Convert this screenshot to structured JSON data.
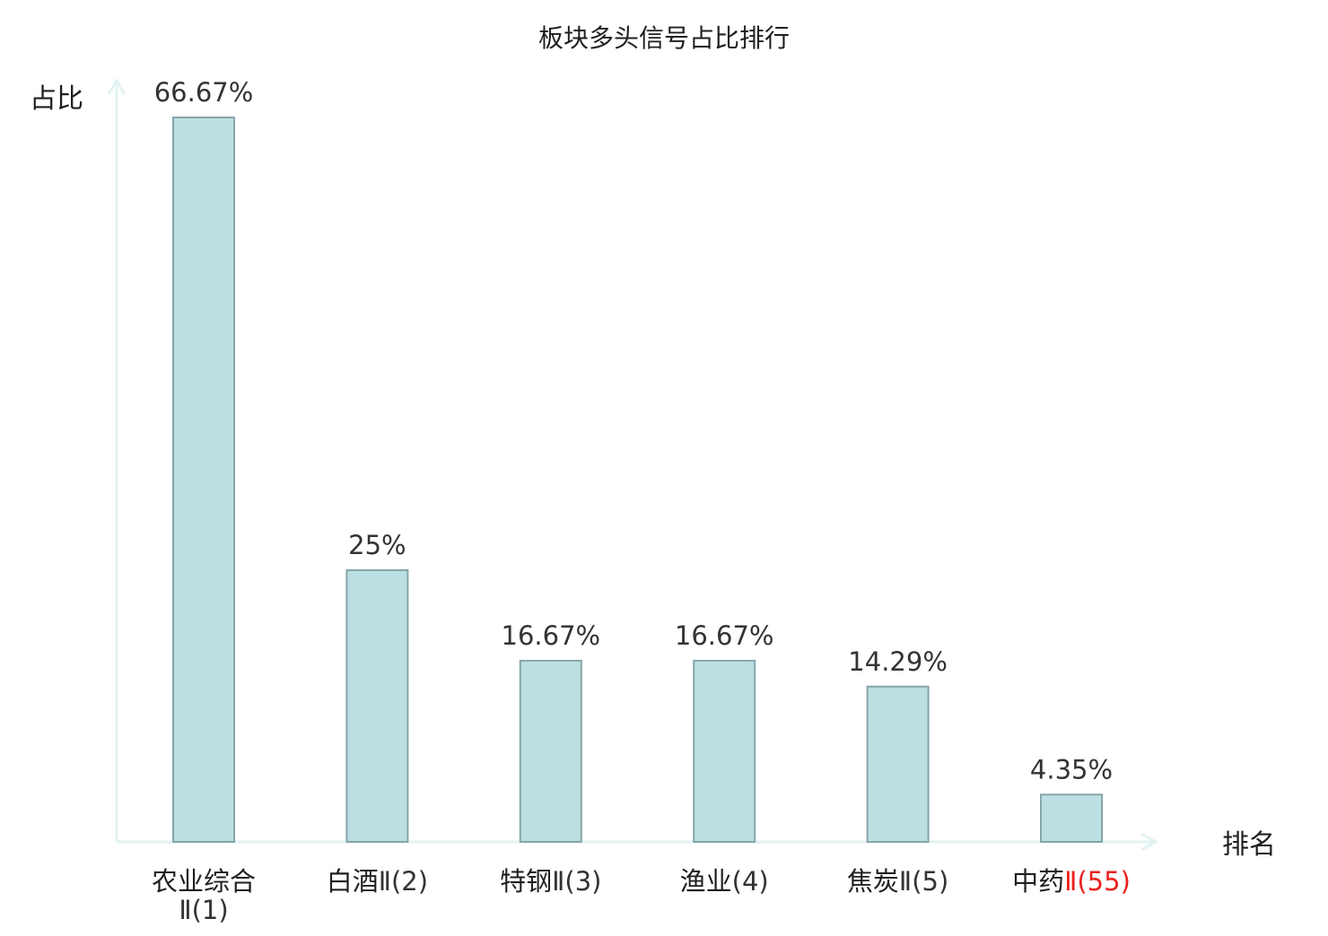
{
  "chart_data": {
    "type": "bar",
    "title": "板块多头信号占比排行",
    "xlabel": "排名",
    "ylabel": "占比",
    "ylim": [
      0,
      66.67
    ],
    "grid": false,
    "legend": "none",
    "categories": [
      {
        "name": "农业综合",
        "suffix": "Ⅱ(1)",
        "highlight": false
      },
      {
        "name": "白酒",
        "suffix": "Ⅱ(2)",
        "highlight": false
      },
      {
        "name": "特钢",
        "suffix": "Ⅱ(3)",
        "highlight": false
      },
      {
        "name": "渔业",
        "suffix": "(4)",
        "highlight": false
      },
      {
        "name": "焦炭",
        "suffix": "Ⅱ(5)",
        "highlight": false
      },
      {
        "name": "中药",
        "suffix": "Ⅱ(55)",
        "highlight": true
      }
    ],
    "values": [
      66.67,
      25,
      16.67,
      16.67,
      14.29,
      4.35
    ],
    "value_labels": [
      "66.67%",
      "25%",
      "16.67%",
      "16.67%",
      "14.29%",
      "4.35%"
    ]
  },
  "colors": {
    "bar_fill": "#bce0e2",
    "bar_stroke": "#86a6aa",
    "axis": "#e2f3f1",
    "text": "#1f1f1f",
    "value_text": "#333333",
    "highlight": "#e8211f"
  }
}
